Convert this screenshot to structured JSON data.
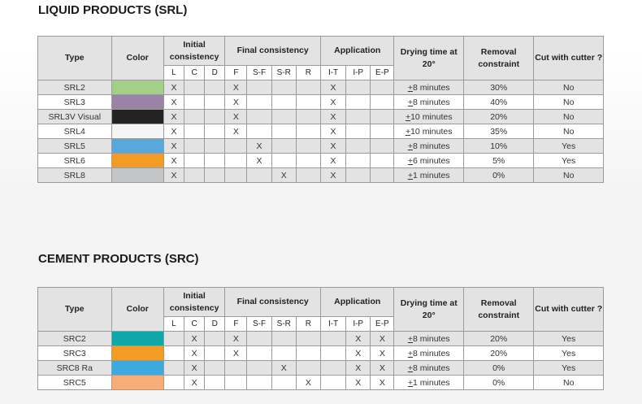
{
  "liquid": {
    "title": "LIQUID PRODUCTS (SRL)",
    "rows": [
      {
        "type": "SRL2",
        "color": "#a3cf86",
        "L": "X",
        "C": "",
        "D": "",
        "F": "X",
        "SF": "",
        "SR": "",
        "R": "",
        "IT": "X",
        "IP": "",
        "EP": "",
        "drying_pm": "+",
        "drying": "8 minutes",
        "removal": "30%",
        "cutter": "No"
      },
      {
        "type": "SRL3",
        "color": "#9b83a8",
        "L": "X",
        "C": "",
        "D": "",
        "F": "X",
        "SF": "",
        "SR": "",
        "R": "",
        "IT": "X",
        "IP": "",
        "EP": "",
        "drying_pm": "+",
        "drying": "8 minutes",
        "removal": "40%",
        "cutter": "No"
      },
      {
        "type": "SRL3V Visual",
        "color": "#232323",
        "L": "X",
        "C": "",
        "D": "",
        "F": "X",
        "SF": "",
        "SR": "",
        "R": "",
        "IT": "X",
        "IP": "",
        "EP": "",
        "drying_pm": "+",
        "drying": "10 minutes",
        "removal": "20%",
        "cutter": "No"
      },
      {
        "type": "SRL4",
        "color": "#f5f5f5",
        "L": "X",
        "C": "",
        "D": "",
        "F": "X",
        "SF": "",
        "SR": "",
        "R": "",
        "IT": "X",
        "IP": "",
        "EP": "",
        "drying_pm": "+",
        "drying": "10 minutes",
        "removal": "35%",
        "cutter": "No"
      },
      {
        "type": "SRL5",
        "color": "#5aa7dc",
        "L": "X",
        "C": "",
        "D": "",
        "F": "",
        "SF": "X",
        "SR": "",
        "R": "",
        "IT": "X",
        "IP": "",
        "EP": "",
        "drying_pm": "+",
        "drying": "8 minutes",
        "removal": "10%",
        "cutter": "Yes"
      },
      {
        "type": "SRL6",
        "color": "#f49b25",
        "L": "X",
        "C": "",
        "D": "",
        "F": "",
        "SF": "X",
        "SR": "",
        "R": "",
        "IT": "X",
        "IP": "",
        "EP": "",
        "drying_pm": "+",
        "drying": "6 minutes",
        "removal": "5%",
        "cutter": "Yes"
      },
      {
        "type": "SRL8",
        "color": "#c3c5c7",
        "L": "X",
        "C": "",
        "D": "",
        "F": "",
        "SF": "",
        "SR": "X",
        "R": "",
        "IT": "X",
        "IP": "",
        "EP": "",
        "drying_pm": "+",
        "drying": "1 minutes",
        "removal": "0%",
        "cutter": "No"
      }
    ]
  },
  "cement": {
    "title": "CEMENT PRODUCTS (SRC)",
    "rows": [
      {
        "type": "SRC2",
        "color": "#0fa7a7",
        "L": "",
        "C": "X",
        "D": "",
        "F": "X",
        "SF": "",
        "SR": "",
        "R": "",
        "IT": "",
        "IP": "X",
        "EP": "X",
        "drying_pm": "+",
        "drying": "8 minutes",
        "removal": "20%",
        "cutter": "Yes"
      },
      {
        "type": "SRC3",
        "color": "#f49b25",
        "L": "",
        "C": "X",
        "D": "",
        "F": "X",
        "SF": "",
        "SR": "",
        "R": "",
        "IT": "",
        "IP": "X",
        "EP": "X",
        "drying_pm": "+",
        "drying": "8 minutes",
        "removal": "20%",
        "cutter": "Yes"
      },
      {
        "type": "SRC8 Ra",
        "color": "#3ea8df",
        "L": "",
        "C": "X",
        "D": "",
        "F": "",
        "SF": "",
        "SR": "X",
        "R": "",
        "IT": "",
        "IP": "X",
        "EP": "X",
        "drying_pm": "+",
        "drying": "8 minutes",
        "removal": "0%",
        "cutter": "Yes"
      },
      {
        "type": "SRC5",
        "color": "#f7ad77",
        "L": "",
        "C": "X",
        "D": "",
        "F": "",
        "SF": "",
        "SR": "",
        "R": "X",
        "IT": "",
        "IP": "X",
        "EP": "X",
        "drying_pm": "+",
        "drying": "1 minutes",
        "removal": "0%",
        "cutter": "No"
      }
    ]
  },
  "headers": {
    "type": "Type",
    "color": "Color",
    "initial": "Initial consistency",
    "final": "Final consistency",
    "application": "Application",
    "drying": "Drying time at 20°",
    "removal": "Removal constraint",
    "cutter": "Cut with cutter ?",
    "sub": {
      "L": "L",
      "C": "C",
      "D": "D",
      "F": "F",
      "SF": "S-F",
      "SR": "S-R",
      "R": "R",
      "IT": "I-T",
      "IP": "I-P",
      "EP": "E-P"
    }
  }
}
